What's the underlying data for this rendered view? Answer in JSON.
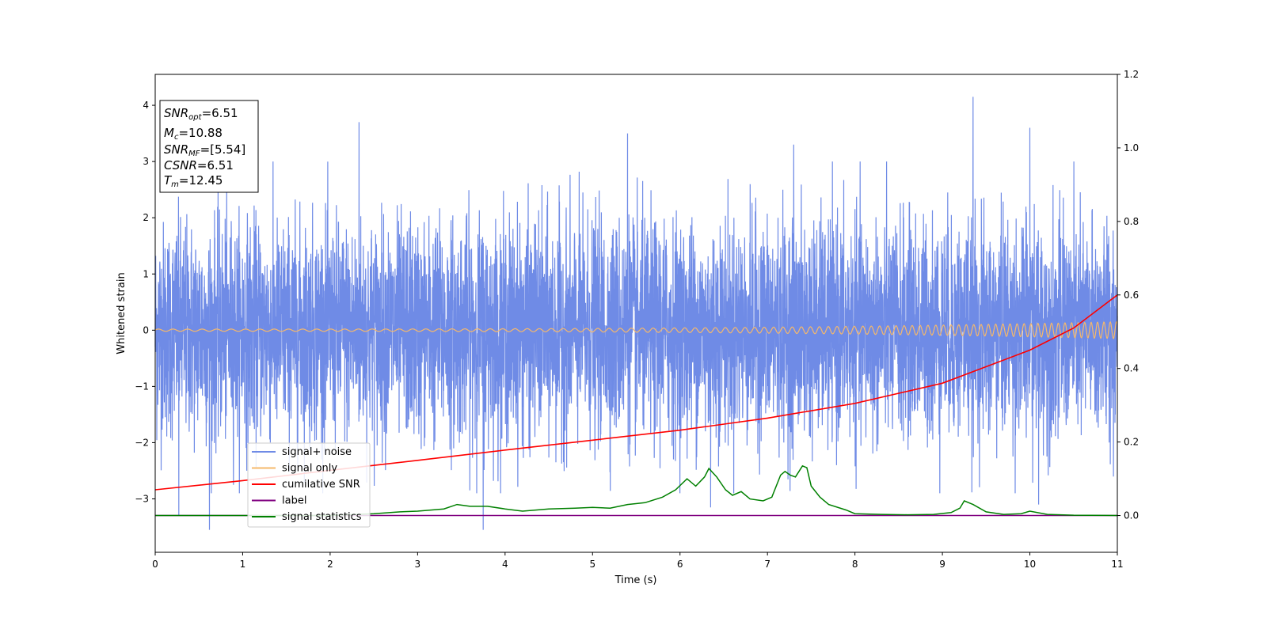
{
  "chart_data": {
    "type": "line",
    "xlabel": "Time (s)",
    "ylabel": "Whitened strain",
    "xlim": [
      0,
      11
    ],
    "ylim": [
      -3.95,
      4.55
    ],
    "y2lim": [
      -0.1,
      1.2
    ],
    "x_ticks": [
      0,
      1,
      2,
      3,
      4,
      5,
      6,
      7,
      8,
      9,
      10,
      11
    ],
    "y_ticks": [
      -3,
      -2,
      -1,
      0,
      1,
      2,
      3,
      4
    ],
    "y2_ticks": [
      0.0,
      0.2,
      0.4,
      0.6,
      0.8,
      1.0,
      1.2
    ],
    "y_tick_labels": [
      "−3",
      "−2",
      "−1",
      "0",
      "1",
      "2",
      "3",
      "4"
    ],
    "y2_tick_labels": [
      "0.0",
      "0.2",
      "0.4",
      "0.6",
      "0.8",
      "1.0",
      "1.2"
    ],
    "grid": false,
    "legend_position": "lower-left",
    "annotation": {
      "snr_opt": "6.51",
      "mc": "10.88",
      "snr_mf": "[5.54]",
      "csnr": "6.51",
      "tm": "12.45"
    },
    "series": [
      {
        "name": "signal+ noise",
        "color": "#6f8be6",
        "axis": "left",
        "description_values": {
          "mean": 0.0,
          "std": 0.95,
          "min": -3.55,
          "max": 4.15
        },
        "notable_peaks": [
          [
            0.27,
            -3.3
          ],
          [
            0.62,
            -3.55
          ],
          [
            2.33,
            3.7
          ],
          [
            3.75,
            -3.55
          ],
          [
            5.4,
            3.5
          ],
          [
            6.35,
            -3.15
          ],
          [
            7.3,
            3.3
          ],
          [
            9.35,
            4.15
          ],
          [
            10.0,
            3.6
          ],
          [
            10.1,
            -3.1
          ]
        ]
      },
      {
        "name": "signal only",
        "color": "#f5b86b",
        "axis": "left",
        "amplitude_start": 0.02,
        "amplitude_end": 0.15,
        "frequency_start_hz": 6,
        "frequency_end_hz": 14
      },
      {
        "name": "cumilative SNR",
        "color": "#ff0000",
        "axis": "right",
        "x": [
          0,
          1,
          2,
          3,
          4,
          5,
          6,
          7,
          8,
          9,
          10,
          10.5,
          11
        ],
        "y": [
          0.07,
          0.095,
          0.123,
          0.15,
          0.178,
          0.205,
          0.232,
          0.265,
          0.305,
          0.36,
          0.45,
          0.51,
          0.6
        ]
      },
      {
        "name": "label",
        "color": "#800080",
        "axis": "right",
        "x": [
          0,
          11
        ],
        "y": [
          0.0,
          0.0
        ]
      },
      {
        "name": "signal statistics",
        "color": "#008000",
        "axis": "right",
        "x": [
          0,
          0.5,
          1,
          1.5,
          2,
          2.5,
          2.8,
          3.0,
          3.3,
          3.45,
          3.6,
          3.8,
          4.0,
          4.2,
          4.5,
          4.8,
          5.0,
          5.2,
          5.4,
          5.6,
          5.8,
          5.95,
          6.08,
          6.18,
          6.28,
          6.33,
          6.42,
          6.52,
          6.6,
          6.7,
          6.8,
          6.95,
          7.05,
          7.15,
          7.2,
          7.26,
          7.32,
          7.4,
          7.45,
          7.5,
          7.6,
          7.7,
          7.9,
          8.0,
          8.3,
          8.6,
          8.9,
          9.1,
          9.2,
          9.25,
          9.35,
          9.5,
          9.7,
          9.9,
          10.0,
          10.2,
          10.5,
          11.0
        ],
        "y": [
          0.0,
          0.0,
          0.0,
          0.0,
          0.0,
          0.005,
          0.01,
          0.012,
          0.018,
          0.03,
          0.025,
          0.025,
          0.018,
          0.012,
          0.018,
          0.02,
          0.022,
          0.02,
          0.03,
          0.035,
          0.05,
          0.07,
          0.1,
          0.08,
          0.105,
          0.128,
          0.105,
          0.07,
          0.055,
          0.065,
          0.045,
          0.04,
          0.05,
          0.11,
          0.12,
          0.11,
          0.105,
          0.135,
          0.13,
          0.08,
          0.05,
          0.03,
          0.015,
          0.005,
          0.003,
          0.002,
          0.003,
          0.008,
          0.02,
          0.04,
          0.03,
          0.01,
          0.003,
          0.005,
          0.012,
          0.003,
          0.001,
          0.0
        ]
      }
    ]
  }
}
